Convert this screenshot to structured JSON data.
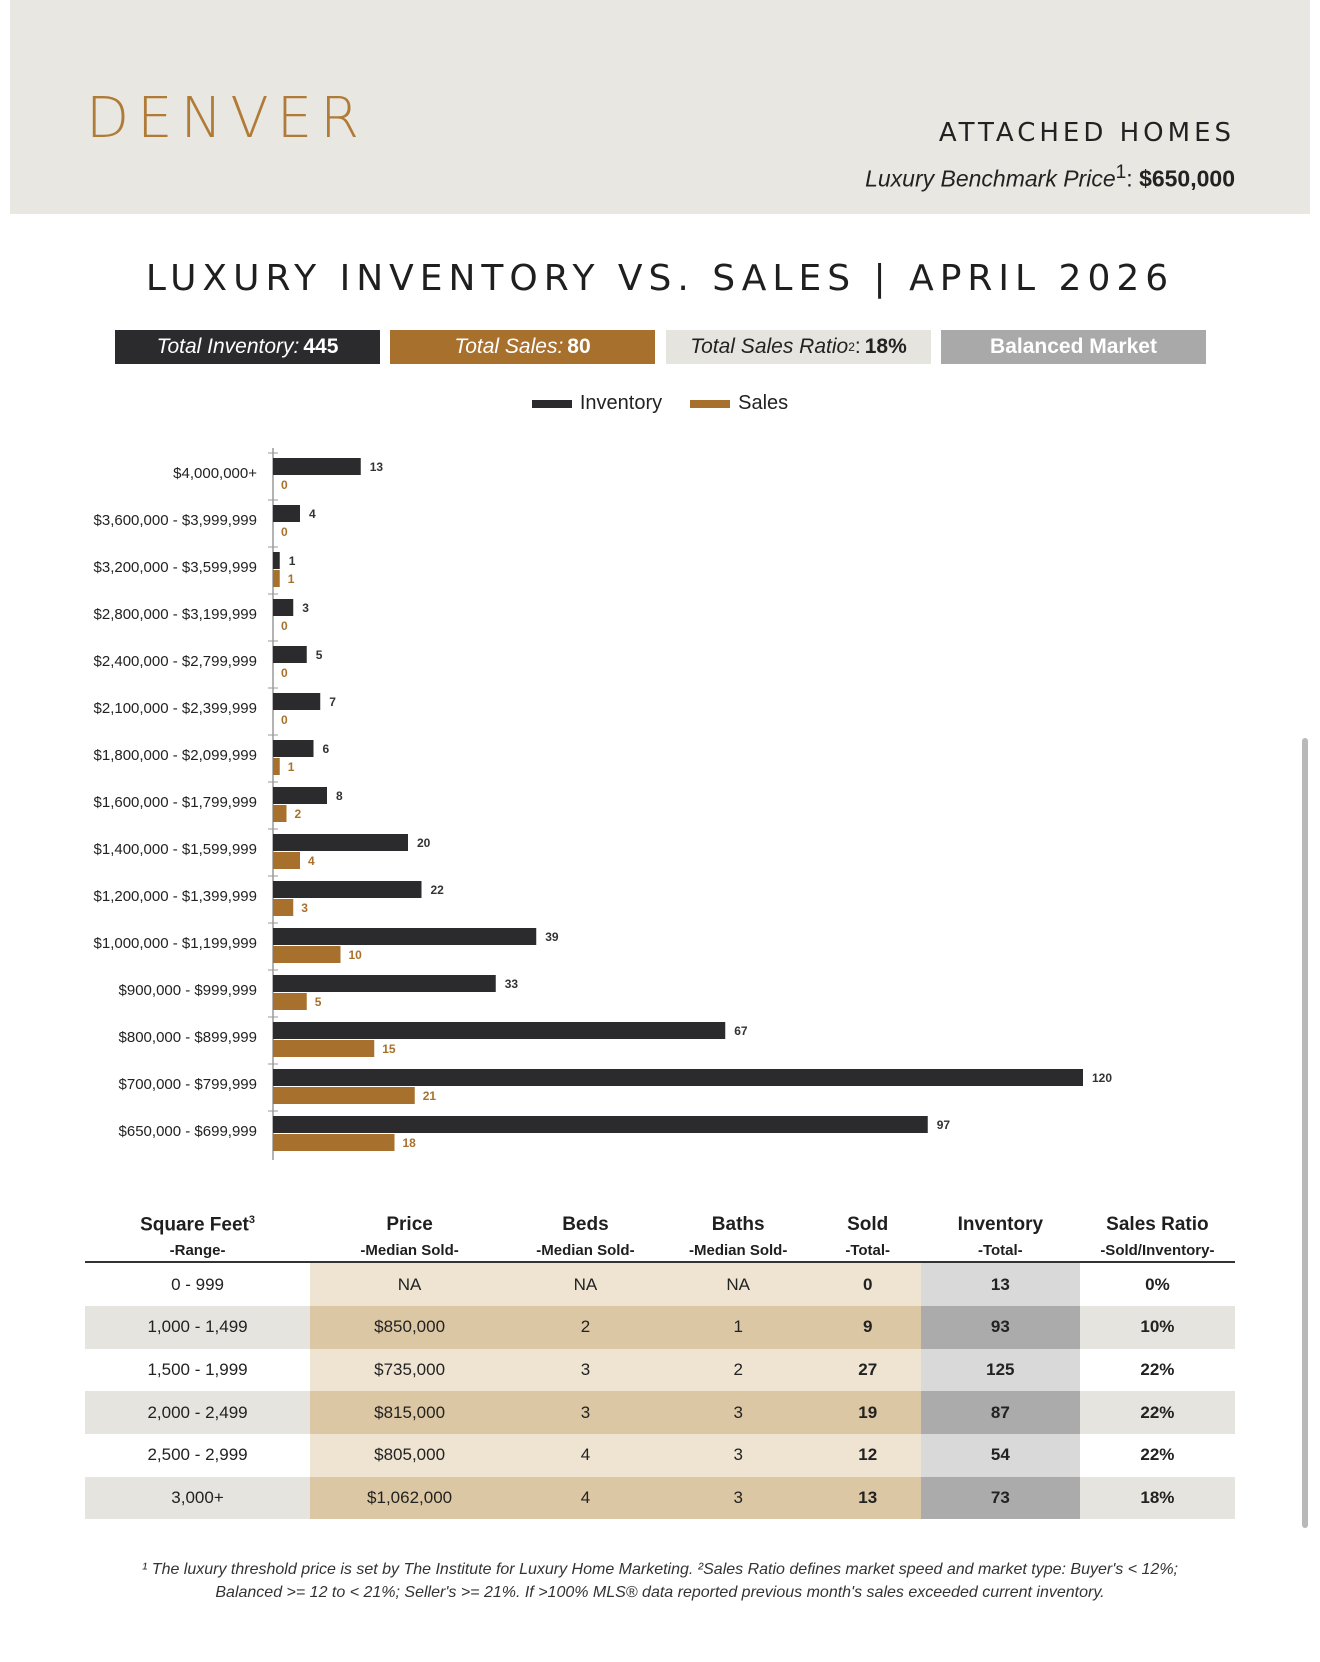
{
  "header": {
    "city": "DENVER",
    "category": "ATTACHED HOMES",
    "benchmark_label": "Luxury Benchmark Price",
    "benchmark_sup": "1",
    "benchmark_value": "$650,000"
  },
  "report_title": "LUXURY INVENTORY VS. SALES | APRIL 2026",
  "stats": {
    "inventory_label": "Total Inventory:",
    "inventory_value": "445",
    "sales_label": "Total Sales:",
    "sales_value": "80",
    "ratio_label": "Total Sales Ratio",
    "ratio_sup": "2",
    "ratio_value": "18%",
    "market": "Balanced Market"
  },
  "colors": {
    "inventory": "#2b2b2e",
    "sales": "#a8702d",
    "accent": "#b07b36"
  },
  "chart_data": {
    "type": "bar",
    "orientation": "horizontal",
    "legend_position": "top-center",
    "categories": [
      "$4,000,000+",
      "$3,600,000 - $3,999,999",
      "$3,200,000 - $3,599,999",
      "$2,800,000 - $3,199,999",
      "$2,400,000 - $2,799,999",
      "$2,100,000 - $2,399,999",
      "$1,800,000 - $2,099,999",
      "$1,600,000 - $1,799,999",
      "$1,400,000 - $1,599,999",
      "$1,200,000 - $1,399,999",
      "$1,000,000 - $1,199,999",
      "$900,000 - $999,999",
      "$800,000 - $899,999",
      "$700,000 - $799,999",
      "$650,000 - $699,999"
    ],
    "series": [
      {
        "name": "Inventory",
        "values": [
          13,
          4,
          1,
          3,
          5,
          7,
          6,
          8,
          20,
          22,
          39,
          33,
          67,
          120,
          97
        ]
      },
      {
        "name": "Sales",
        "values": [
          0,
          0,
          1,
          0,
          0,
          0,
          1,
          2,
          4,
          3,
          10,
          5,
          15,
          21,
          18
        ]
      }
    ],
    "xlim": [
      0,
      120
    ],
    "grid": false,
    "data_labels": true
  },
  "table": {
    "columns": [
      {
        "title": "Square Feet",
        "sup": "3",
        "sub": "-Range-"
      },
      {
        "title": "Price",
        "sub": "-Median Sold-"
      },
      {
        "title": "Beds",
        "sub": "-Median Sold-"
      },
      {
        "title": "Baths",
        "sub": "-Median Sold-"
      },
      {
        "title": "Sold",
        "sub": "-Total-"
      },
      {
        "title": "Inventory",
        "sub": "-Total-"
      },
      {
        "title": "Sales Ratio",
        "sub": "-Sold/Inventory-"
      }
    ],
    "rows": [
      [
        "0 - 999",
        "NA",
        "NA",
        "NA",
        "0",
        "13",
        "0%"
      ],
      [
        "1,000 - 1,499",
        "$850,000",
        "2",
        "1",
        "9",
        "93",
        "10%"
      ],
      [
        "1,500 - 1,999",
        "$735,000",
        "3",
        "2",
        "27",
        "125",
        "22%"
      ],
      [
        "2,000 - 2,499",
        "$815,000",
        "3",
        "3",
        "19",
        "87",
        "22%"
      ],
      [
        "2,500 - 2,999",
        "$805,000",
        "4",
        "3",
        "12",
        "54",
        "22%"
      ],
      [
        "3,000+",
        "$1,062,000",
        "4",
        "3",
        "13",
        "73",
        "18%"
      ]
    ]
  },
  "footnote": {
    "line1": "¹ The luxury threshold price is set by The Institute for Luxury Home Marketing. ²Sales Ratio defines market speed and market type: Buyer's < 12%;",
    "line2": "Balanced >= 12 to < 21%; Seller's >= 21%. If >100% MLS® data reported previous month's sales exceeded current inventory."
  }
}
